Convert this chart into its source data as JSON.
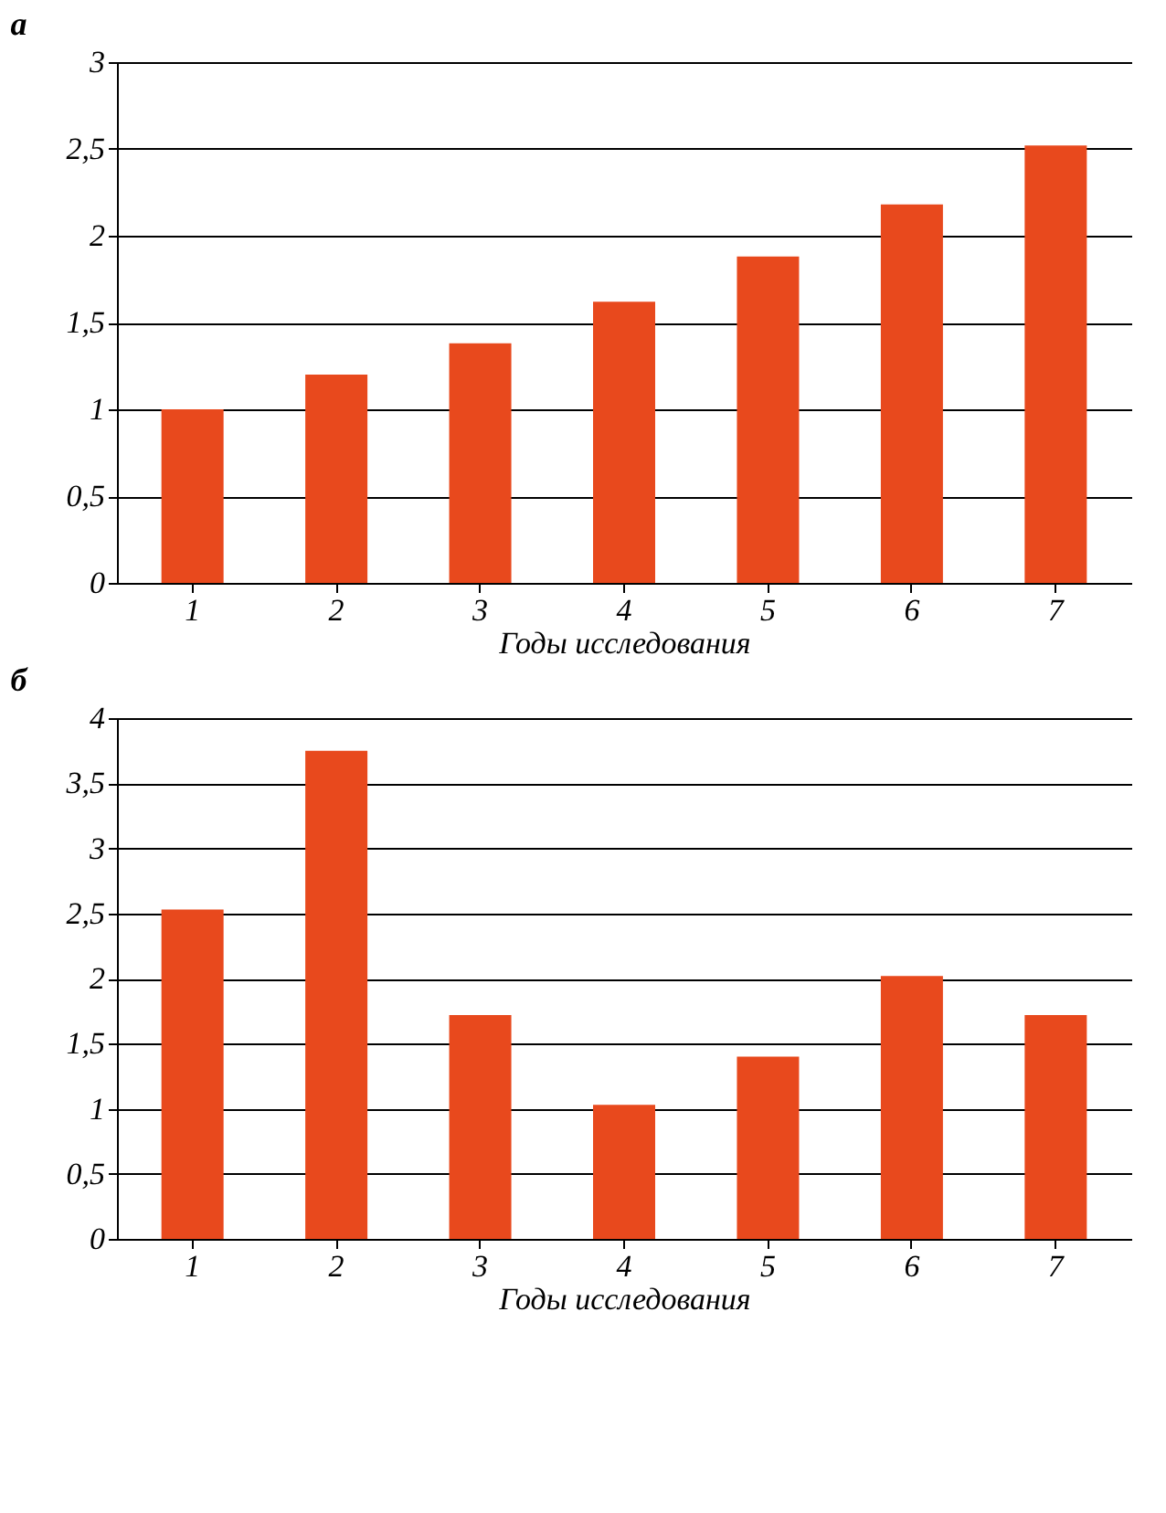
{
  "chart_data": [
    {
      "type": "bar",
      "title": "а",
      "xlabel": "Годы исследования",
      "categories": [
        "1",
        "2",
        "3",
        "4",
        "5",
        "6",
        "7"
      ],
      "color": "#e8491d",
      "values": [
        1.0,
        1.2,
        1.38,
        1.62,
        1.88,
        2.18,
        2.52
      ],
      "ylim": [
        0,
        3
      ],
      "yticks": [
        0,
        {
          "value": 0.5,
          "label": "0,5"
        },
        1,
        {
          "value": 1.5,
          "label": "1,5"
        },
        2,
        {
          "value": 2.5,
          "label": "2,5"
        },
        3
      ],
      "grid": "y"
    },
    {
      "type": "bar",
      "title": "б",
      "xlabel": "Годы исследования",
      "categories": [
        "1",
        "2",
        "3",
        "4",
        "5",
        "6",
        "7"
      ],
      "color": "#e8491d",
      "values": [
        2.53,
        3.75,
        1.72,
        1.03,
        1.4,
        2.02,
        1.72
      ],
      "ylim": [
        0,
        4
      ],
      "yticks": [
        0,
        {
          "value": 0.5,
          "label": "0,5"
        },
        1,
        {
          "value": 1.5,
          "label": "1,5"
        },
        2,
        {
          "value": 2.5,
          "label": "2,5"
        },
        3,
        {
          "value": 3.5,
          "label": "3,5"
        },
        4
      ],
      "grid": "y"
    }
  ]
}
